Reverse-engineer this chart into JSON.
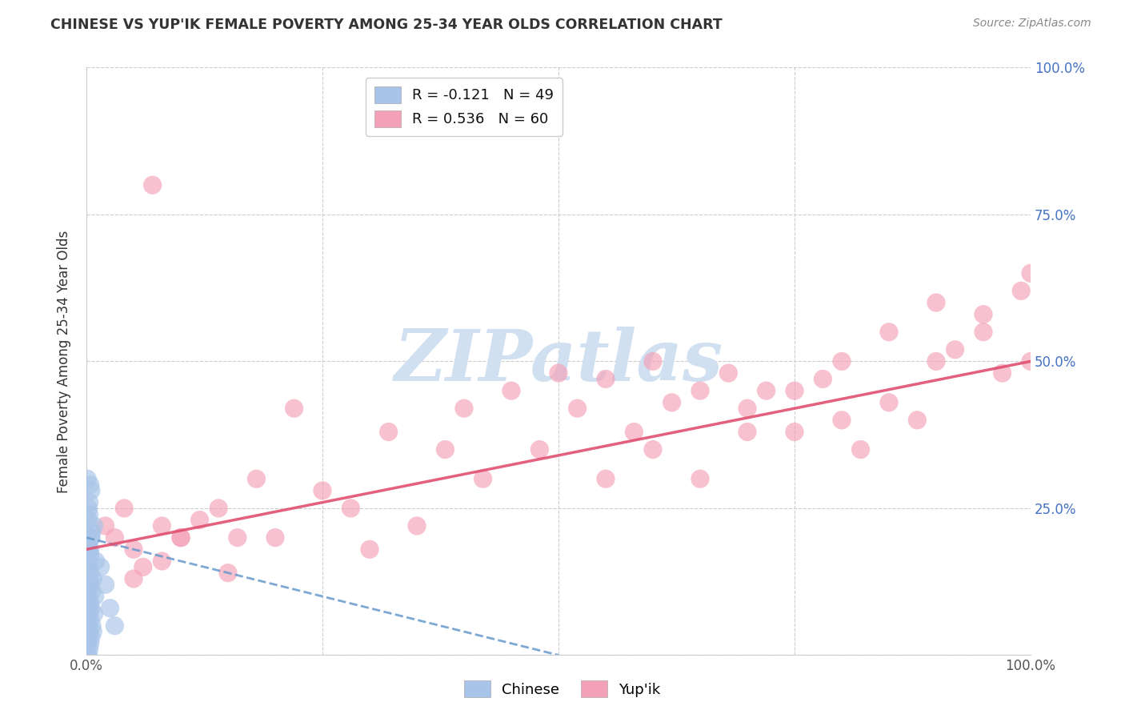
{
  "title": "CHINESE VS YUP'IK FEMALE POVERTY AMONG 25-34 YEAR OLDS CORRELATION CHART",
  "source": "Source: ZipAtlas.com",
  "ylabel": "Female Poverty Among 25-34 Year Olds",
  "xlim": [
    0,
    1.0
  ],
  "ylim": [
    0,
    1.0
  ],
  "chinese_color": "#a8c4e8",
  "yupik_color": "#f4a0b8",
  "chinese_line_color": "#6699cc",
  "yupik_line_color": "#e05070",
  "watermark_text": "ZIPatlas",
  "watermark_color": "#d0e0f0",
  "legend_items": [
    {
      "label": "R = -0.121   N = 49",
      "color": "#a8c4e8"
    },
    {
      "label": "R = 0.536   N = 60",
      "color": "#f4a0b8"
    }
  ],
  "bottom_legend": [
    "Chinese",
    "Yup'ik"
  ],
  "chinese_x": [
    0.001,
    0.001,
    0.001,
    0.001,
    0.001,
    0.002,
    0.002,
    0.002,
    0.002,
    0.002,
    0.003,
    0.003,
    0.003,
    0.003,
    0.003,
    0.004,
    0.004,
    0.004,
    0.004,
    0.005,
    0.005,
    0.005,
    0.006,
    0.006,
    0.007,
    0.007,
    0.008,
    0.008,
    0.009,
    0.01,
    0.001,
    0.002,
    0.003,
    0.004,
    0.005,
    0.006,
    0.001,
    0.002,
    0.003,
    0.004,
    0.001,
    0.002,
    0.003,
    0.004,
    0.005,
    0.015,
    0.02,
    0.025,
    0.03
  ],
  "chinese_y": [
    0.0,
    0.02,
    0.04,
    0.06,
    0.08,
    0.0,
    0.03,
    0.05,
    0.1,
    0.15,
    0.01,
    0.04,
    0.07,
    0.12,
    0.18,
    0.02,
    0.06,
    0.09,
    0.14,
    0.03,
    0.08,
    0.2,
    0.05,
    0.11,
    0.04,
    0.13,
    0.07,
    0.22,
    0.1,
    0.16,
    0.19,
    0.25,
    0.24,
    0.17,
    0.28,
    0.21,
    0.3,
    0.23,
    0.26,
    0.29,
    0.11,
    0.16,
    0.13,
    0.18,
    0.2,
    0.15,
    0.12,
    0.08,
    0.05
  ],
  "yupik_x": [
    0.02,
    0.03,
    0.04,
    0.05,
    0.06,
    0.07,
    0.08,
    0.1,
    0.12,
    0.14,
    0.16,
    0.18,
    0.2,
    0.22,
    0.25,
    0.28,
    0.3,
    0.32,
    0.35,
    0.38,
    0.4,
    0.42,
    0.45,
    0.48,
    0.5,
    0.52,
    0.55,
    0.58,
    0.6,
    0.62,
    0.65,
    0.68,
    0.7,
    0.72,
    0.75,
    0.78,
    0.8,
    0.82,
    0.85,
    0.88,
    0.9,
    0.92,
    0.95,
    0.97,
    0.99,
    1.0,
    0.05,
    0.08,
    0.1,
    0.15,
    0.55,
    0.6,
    0.65,
    0.7,
    0.75,
    0.8,
    0.85,
    0.9,
    0.95,
    1.0
  ],
  "yupik_y": [
    0.22,
    0.2,
    0.25,
    0.18,
    0.15,
    0.8,
    0.22,
    0.2,
    0.23,
    0.25,
    0.2,
    0.3,
    0.2,
    0.42,
    0.28,
    0.25,
    0.18,
    0.38,
    0.22,
    0.35,
    0.42,
    0.3,
    0.45,
    0.35,
    0.48,
    0.42,
    0.47,
    0.38,
    0.5,
    0.43,
    0.45,
    0.48,
    0.42,
    0.45,
    0.38,
    0.47,
    0.5,
    0.35,
    0.43,
    0.4,
    0.5,
    0.52,
    0.55,
    0.48,
    0.62,
    0.65,
    0.13,
    0.16,
    0.2,
    0.14,
    0.3,
    0.35,
    0.3,
    0.38,
    0.45,
    0.4,
    0.55,
    0.6,
    0.58,
    0.5
  ],
  "yupik_trend_x0": 0.0,
  "yupik_trend_y0": 0.18,
  "yupik_trend_x1": 1.0,
  "yupik_trend_y1": 0.5,
  "chinese_trend_x0": 0.0,
  "chinese_trend_y0": 0.2,
  "chinese_trend_x1": 0.5,
  "chinese_trend_y1": 0.0
}
